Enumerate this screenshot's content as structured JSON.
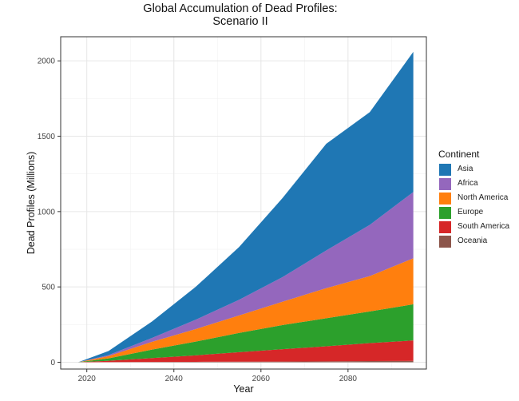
{
  "chart_data": {
    "type": "area",
    "stacked": true,
    "title": "Global Accumulation of Dead Profiles:",
    "subtitle": "Scenario II",
    "xlabel": "Year",
    "ylabel": "Dead Profiles (Millions)",
    "xlim": [
      2014,
      2098
    ],
    "ylim": [
      -45,
      2160
    ],
    "xticks": [
      2020,
      2040,
      2060,
      2080
    ],
    "yticks": [
      0,
      500,
      1000,
      1500,
      2000
    ],
    "grid": true,
    "legend_title": "Continent",
    "legend_position": "right",
    "x": [
      2018,
      2025,
      2035,
      2045,
      2055,
      2065,
      2075,
      2085,
      2095
    ],
    "series": [
      {
        "name": "Oceania",
        "color": "#8c564b",
        "values": [
          0,
          1,
          2,
          3,
          4,
          5,
          6,
          8,
          9
        ]
      },
      {
        "name": "South America",
        "color": "#d62728",
        "values": [
          0,
          9,
          26,
          43,
          63,
          82,
          100,
          119,
          136
        ]
      },
      {
        "name": "Europe",
        "color": "#2ca02c",
        "values": [
          0,
          16,
          56,
          91,
          128,
          160,
          186,
          210,
          240
        ]
      },
      {
        "name": "North America",
        "color": "#ff7f0e",
        "values": [
          0,
          15,
          52,
          83,
          116,
          155,
          200,
          235,
          305
        ]
      },
      {
        "name": "Africa",
        "color": "#9467bd",
        "values": [
          0,
          7,
          26,
          62,
          104,
          164,
          250,
          340,
          440
        ]
      },
      {
        "name": "Asia",
        "color": "#1f77b4",
        "values": [
          0,
          27,
          109,
          218,
          350,
          525,
          708,
          748,
          930
        ]
      }
    ]
  },
  "legend": [
    {
      "label": "Asia",
      "color": "#1f77b4"
    },
    {
      "label": "Africa",
      "color": "#9467bd"
    },
    {
      "label": "North America",
      "color": "#ff7f0e"
    },
    {
      "label": "Europe",
      "color": "#2ca02c"
    },
    {
      "label": "South America",
      "color": "#d62728"
    },
    {
      "label": "Oceania",
      "color": "#8c564b"
    }
  ]
}
